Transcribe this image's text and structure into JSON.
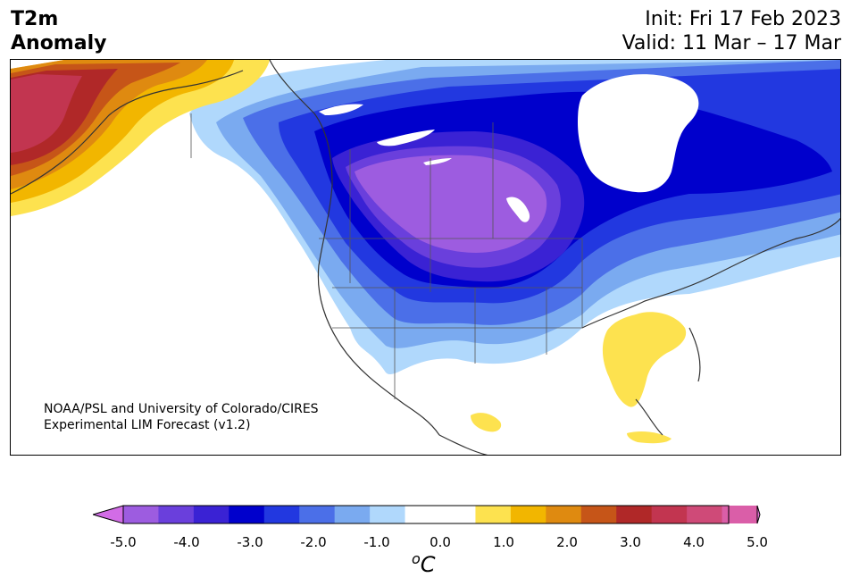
{
  "header": {
    "variable": "T2m",
    "subtitle": "Anomaly",
    "init": "Init: Fri 17 Feb 2023",
    "valid": "Valid: 11 Mar – 17 Mar"
  },
  "credit": {
    "line1": "NOAA/PSL and University of Colorado/CIRES",
    "line2": "Experimental LIM Forecast (v1.2)"
  },
  "colorbar": {
    "unit_super": "o",
    "unit": "C",
    "ticks": [
      "-5.0",
      "-4.0",
      "-3.0",
      "-2.0",
      "-1.0",
      "0.0",
      "1.0",
      "2.0",
      "3.0",
      "4.0",
      "5.0"
    ],
    "colors": [
      "#9d5ce0",
      "#6a3fdc",
      "#3a22d4",
      "#0000cc",
      "#2238e0",
      "#4b6fe8",
      "#7aaaf0",
      "#b0d8fc",
      "#ffffff",
      "#ffffff",
      "#fde24f",
      "#f2b600",
      "#df8a10",
      "#c65518",
      "#b02828",
      "#c23550",
      "#cf4a78",
      "#da5ea8"
    ],
    "extend_low": "#d26ce6",
    "extend_high": "#e676d8"
  },
  "legend_scale": {
    "min": -5.0,
    "max": 5.0,
    "step": 0.5
  }
}
